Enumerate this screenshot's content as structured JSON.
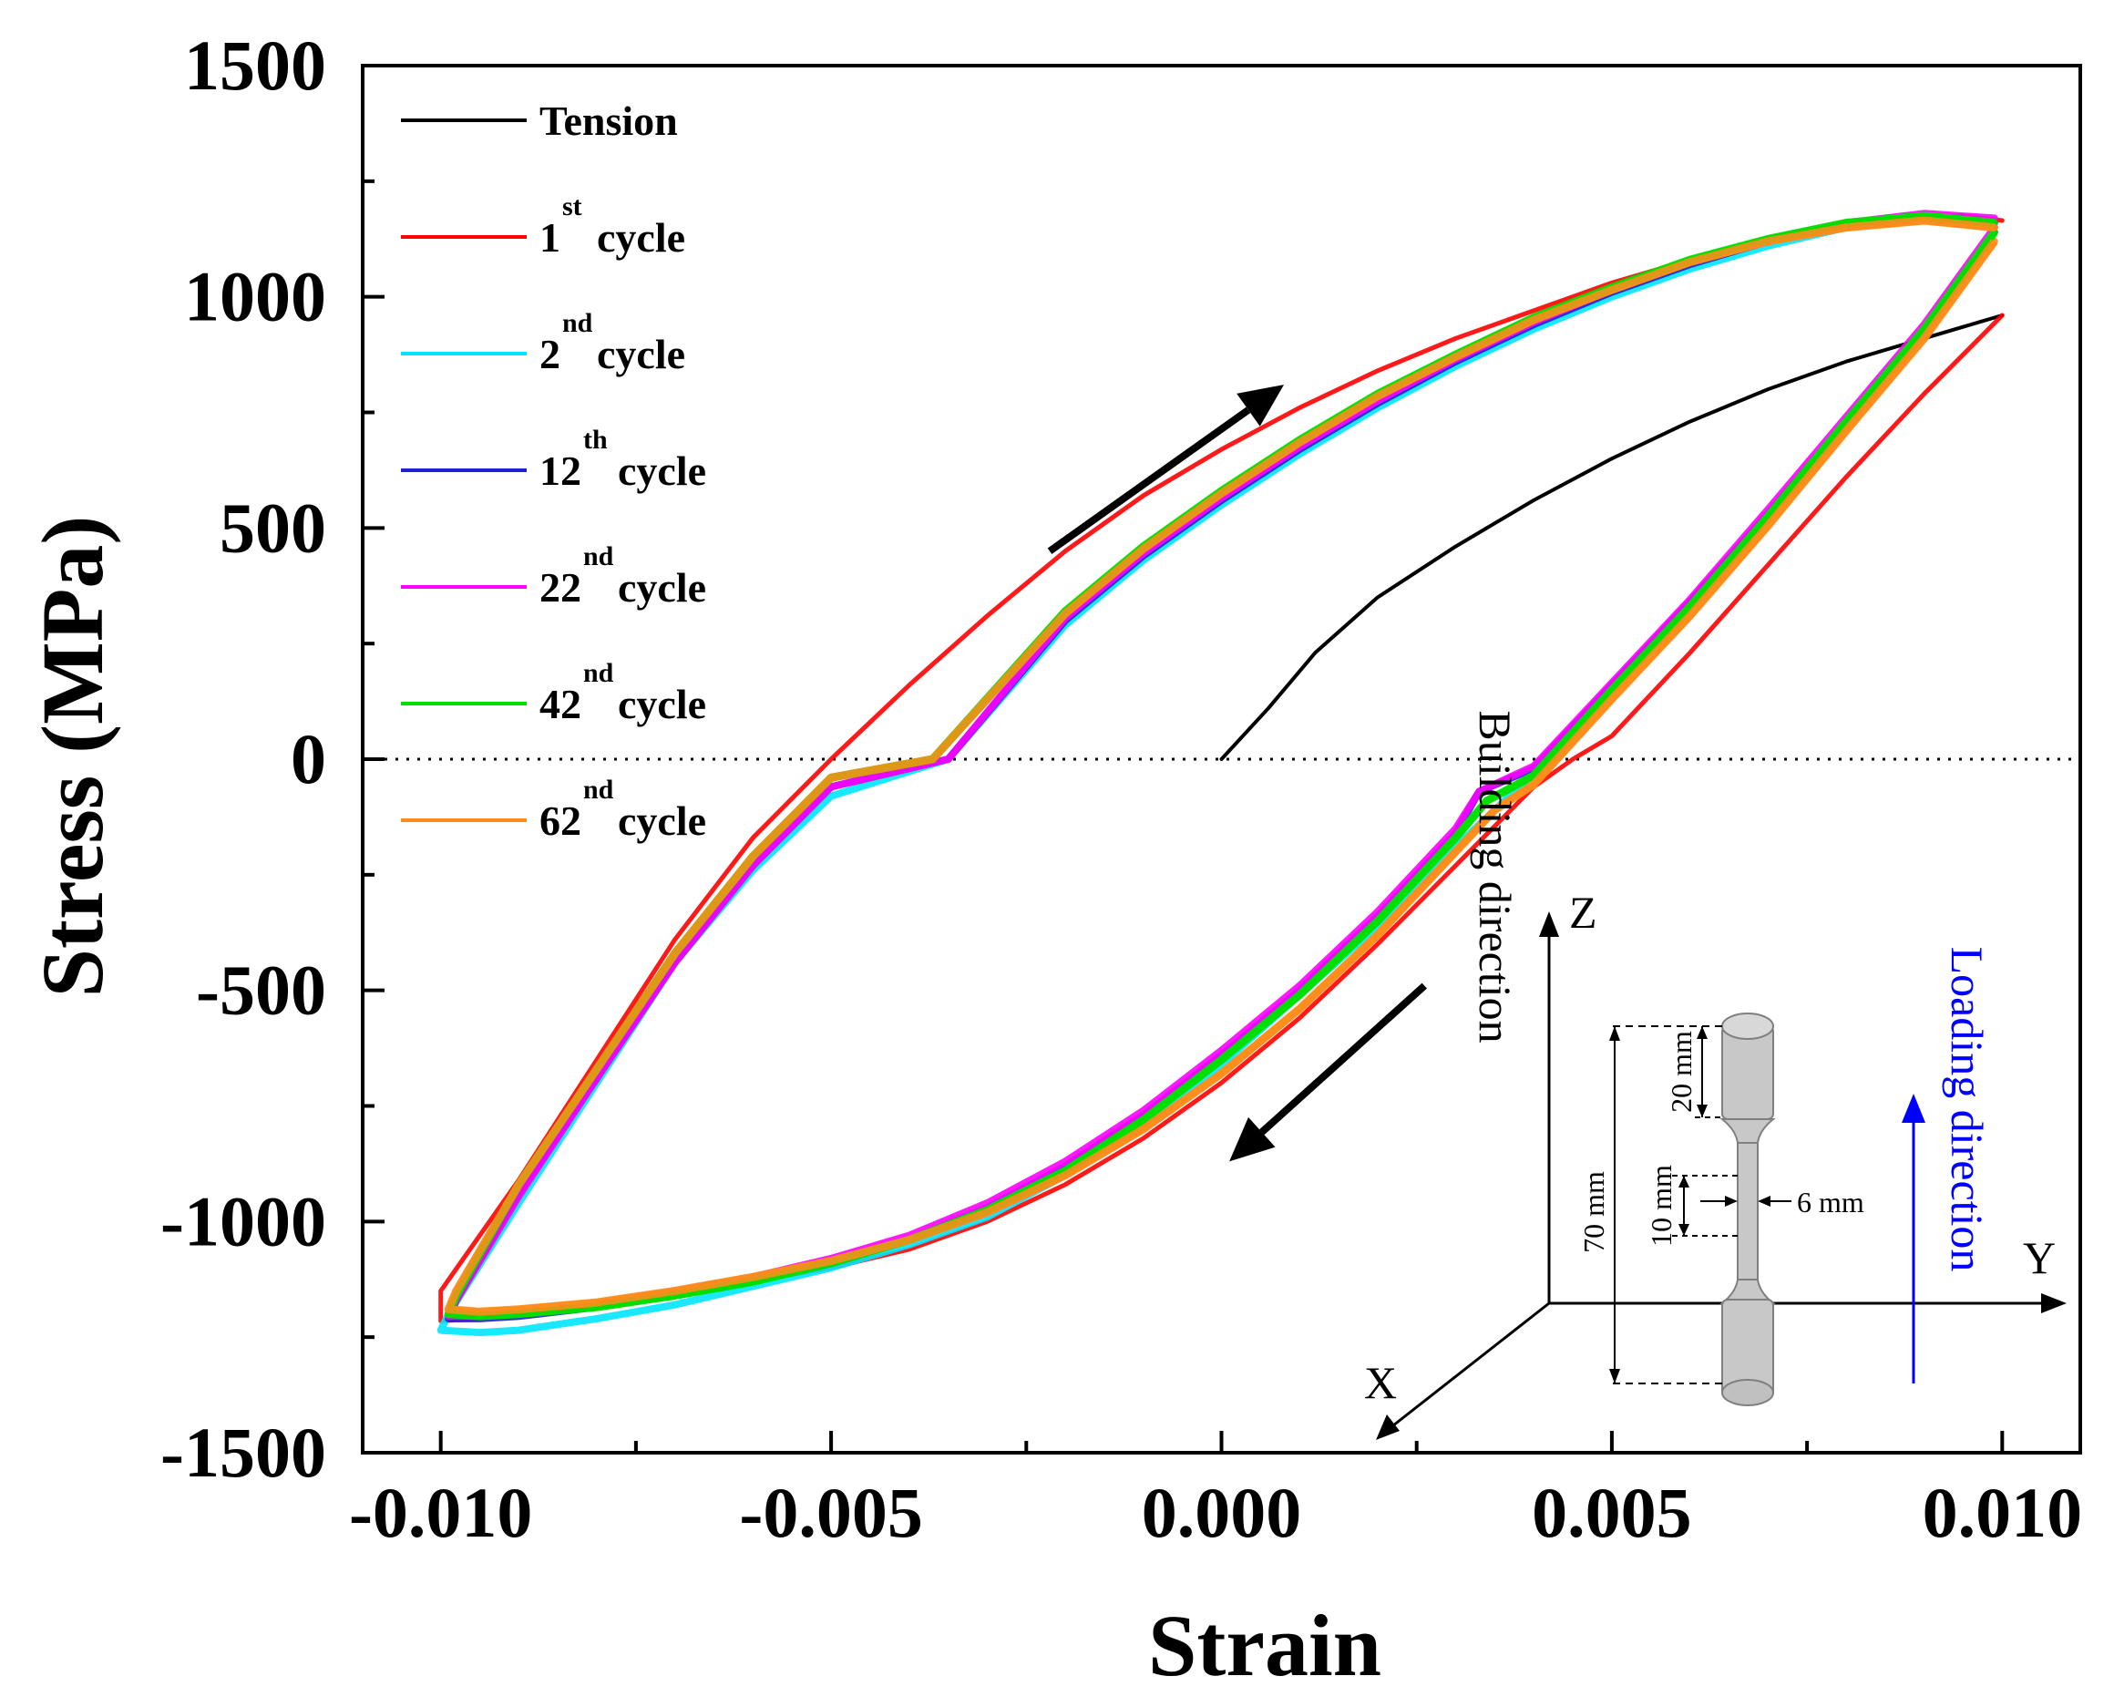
{
  "chart_data": {
    "type": "line",
    "title": "",
    "xlabel": "Strain",
    "ylabel": "Stress (MPa)",
    "xlim": [
      -0.011,
      0.011
    ],
    "ylim": [
      -1500,
      1500
    ],
    "x_ticks": [
      -0.01,
      -0.005,
      0.0,
      0.005,
      0.01
    ],
    "x_tick_labels": [
      "-0.010",
      "-0.005",
      "0.000",
      "0.005",
      "0.010"
    ],
    "y_ticks": [
      -1500,
      -1000,
      -500,
      0,
      500,
      1000,
      1500
    ],
    "y_tick_labels": [
      "-1500",
      "-1000",
      "-500",
      "0",
      "500",
      "1000",
      "1500"
    ],
    "grid": false,
    "legend_position": "top-left",
    "zero_line": true,
    "series": [
      {
        "name": "Tension",
        "color": "#000000",
        "legend_main": "Tension",
        "legend_sup": "",
        "legend_suffix": "",
        "x": [
          0.0,
          0.0006,
          0.0012,
          0.002,
          0.003,
          0.004,
          0.005,
          0.006,
          0.007,
          0.008,
          0.009,
          0.0097,
          0.01
        ],
        "y": [
          0,
          110,
          230,
          350,
          460,
          560,
          650,
          730,
          800,
          860,
          910,
          945,
          960
        ]
      },
      {
        "name": "1st cycle",
        "color": "#ff0000",
        "legend_main": "1",
        "legend_sup": "st",
        "legend_suffix": "cycle",
        "x": [
          0.01,
          0.009,
          0.008,
          0.007,
          0.006,
          0.005,
          0.0045,
          0.004,
          0.003,
          0.002,
          0.001,
          0.0,
          -0.001,
          -0.002,
          -0.003,
          -0.004,
          -0.005,
          -0.006,
          -0.007,
          -0.008,
          -0.009,
          -0.0095,
          -0.01,
          -0.01,
          -0.009,
          -0.008,
          -0.007,
          -0.006,
          -0.005,
          -0.004,
          -0.003,
          -0.002,
          -0.001,
          0.0,
          0.001,
          0.002,
          0.003,
          0.004,
          0.005,
          0.006,
          0.007,
          0.008,
          0.009,
          0.0095,
          0.01
        ],
        "y": [
          960,
          790,
          610,
          420,
          230,
          50,
          0,
          -60,
          -230,
          -400,
          -560,
          -700,
          -820,
          -920,
          -1000,
          -1060,
          -1100,
          -1130,
          -1160,
          -1185,
          -1200,
          -1210,
          -1215,
          -1150,
          -910,
          -650,
          -390,
          -170,
          0,
          160,
          310,
          450,
          570,
          670,
          760,
          840,
          910,
          970,
          1030,
          1080,
          1120,
          1150,
          1170,
          1175,
          1165
        ]
      },
      {
        "name": "2nd cycle",
        "color": "#00e5ff",
        "legend_main": "2",
        "legend_sup": "nd",
        "legend_suffix": "cycle",
        "x": [
          0.0099,
          0.009,
          0.008,
          0.007,
          0.006,
          0.005,
          0.004,
          0.0035,
          0.003,
          0.002,
          0.001,
          0.0,
          -0.001,
          -0.002,
          -0.003,
          -0.004,
          -0.005,
          -0.006,
          -0.007,
          -0.008,
          -0.009,
          -0.0095,
          -0.01,
          -0.0099,
          -0.009,
          -0.008,
          -0.007,
          -0.006,
          -0.005,
          -0.0035,
          -0.002,
          -0.001,
          0.0,
          0.001,
          0.002,
          0.003,
          0.004,
          0.005,
          0.006,
          0.007,
          0.008,
          0.009,
          0.0099
        ],
        "y": [
          1140,
          920,
          720,
          520,
          330,
          150,
          -30,
          -110,
          -190,
          -360,
          -510,
          -660,
          -790,
          -900,
          -990,
          -1050,
          -1100,
          -1140,
          -1180,
          -1210,
          -1235,
          -1240,
          -1235,
          -1200,
          -960,
          -700,
          -440,
          -240,
          -80,
          0,
          290,
          430,
          550,
          660,
          760,
          850,
          930,
          1000,
          1060,
          1110,
          1150,
          1170,
          1160
        ]
      },
      {
        "name": "12th cycle",
        "color": "#1f1fd6",
        "legend_main": "12",
        "legend_sup": "th",
        "legend_suffix": "cycle",
        "x": [
          0.0099,
          0.009,
          0.008,
          0.007,
          0.006,
          0.005,
          0.004,
          0.0033,
          0.003,
          0.002,
          0.001,
          0.0,
          -0.001,
          -0.002,
          -0.003,
          -0.004,
          -0.005,
          -0.006,
          -0.007,
          -0.008,
          -0.009,
          -0.0095,
          -0.0099,
          -0.0098,
          -0.009,
          -0.008,
          -0.007,
          -0.006,
          -0.005,
          -0.0035,
          -0.002,
          -0.001,
          0.0,
          0.001,
          0.002,
          0.003,
          0.004,
          0.005,
          0.006,
          0.007,
          0.008,
          0.009,
          0.0099
        ],
        "y": [
          1140,
          930,
          730,
          530,
          340,
          160,
          -20,
          -70,
          -160,
          -340,
          -500,
          -640,
          -770,
          -880,
          -970,
          -1040,
          -1090,
          -1130,
          -1160,
          -1185,
          -1205,
          -1210,
          -1210,
          -1170,
          -940,
          -690,
          -440,
          -230,
          -60,
          0,
          300,
          440,
          560,
          670,
          770,
          860,
          940,
          1010,
          1070,
          1120,
          1155,
          1170,
          1160
        ]
      },
      {
        "name": "22nd cycle",
        "color": "#ff00ff",
        "legend_main": "22",
        "legend_sup": "nd",
        "legend_suffix": "cycle",
        "x": [
          0.0099,
          0.009,
          0.008,
          0.007,
          0.006,
          0.005,
          0.004,
          0.0033,
          0.003,
          0.002,
          0.001,
          0.0,
          -0.001,
          -0.002,
          -0.003,
          -0.004,
          -0.005,
          -0.006,
          -0.007,
          -0.008,
          -0.009,
          -0.0095,
          -0.0099,
          -0.0098,
          -0.009,
          -0.008,
          -0.007,
          -0.006,
          -0.005,
          -0.0035,
          -0.002,
          -0.001,
          0.0,
          0.001,
          0.002,
          0.003,
          0.004,
          0.005,
          0.006,
          0.007,
          0.008,
          0.009,
          0.0099
        ],
        "y": [
          1150,
          940,
          740,
          540,
          345,
          165,
          -15,
          -70,
          -150,
          -330,
          -490,
          -630,
          -760,
          -870,
          -960,
          -1030,
          -1080,
          -1120,
          -1150,
          -1180,
          -1200,
          -1205,
          -1205,
          -1170,
          -945,
          -690,
          -440,
          -230,
          -60,
          0,
          305,
          445,
          565,
          675,
          775,
          865,
          945,
          1015,
          1075,
          1125,
          1160,
          1180,
          1170
        ]
      },
      {
        "name": "42nd cycle",
        "color": "#00e000",
        "legend_main": "42",
        "legend_sup": "nd",
        "legend_suffix": "cycle",
        "x": [
          0.0099,
          0.009,
          0.008,
          0.007,
          0.006,
          0.005,
          0.004,
          0.0034,
          0.003,
          0.002,
          0.001,
          0.0,
          -0.001,
          -0.002,
          -0.003,
          -0.004,
          -0.005,
          -0.006,
          -0.007,
          -0.008,
          -0.009,
          -0.0095,
          -0.0099,
          -0.0098,
          -0.009,
          -0.008,
          -0.007,
          -0.006,
          -0.005,
          -0.0037,
          -0.002,
          -0.001,
          0.0,
          0.001,
          0.002,
          0.003,
          0.004,
          0.005,
          0.006,
          0.007,
          0.008,
          0.009,
          0.0099
        ],
        "y": [
          1140,
          930,
          730,
          525,
          330,
          150,
          -35,
          -90,
          -170,
          -350,
          -510,
          -650,
          -780,
          -890,
          -975,
          -1040,
          -1090,
          -1130,
          -1160,
          -1185,
          -1200,
          -1205,
          -1200,
          -1160,
          -920,
          -670,
          -420,
          -210,
          -40,
          0,
          320,
          460,
          580,
          690,
          790,
          875,
          955,
          1020,
          1080,
          1125,
          1160,
          1175,
          1160
        ]
      },
      {
        "name": "62nd cycle",
        "color": "#ff8c1a",
        "legend_main": "62",
        "legend_sup": "nd",
        "legend_suffix": "cycle",
        "x": [
          0.0099,
          0.009,
          0.008,
          0.007,
          0.006,
          0.005,
          0.004,
          0.0035,
          0.003,
          0.002,
          0.001,
          0.0,
          -0.001,
          -0.002,
          -0.003,
          -0.004,
          -0.005,
          -0.006,
          -0.007,
          -0.008,
          -0.009,
          -0.0095,
          -0.0099,
          -0.0098,
          -0.009,
          -0.008,
          -0.007,
          -0.006,
          -0.005,
          -0.0037,
          -0.002,
          -0.001,
          0.0,
          0.001,
          0.002,
          0.003,
          0.004,
          0.005,
          0.006,
          0.007,
          0.008,
          0.009,
          0.0099
        ],
        "y": [
          1120,
          910,
          710,
          505,
          310,
          130,
          -55,
          -110,
          -200,
          -380,
          -540,
          -680,
          -800,
          -900,
          -980,
          -1040,
          -1085,
          -1120,
          -1150,
          -1175,
          -1190,
          -1195,
          -1190,
          -1150,
          -920,
          -670,
          -420,
          -210,
          -40,
          0,
          315,
          455,
          575,
          685,
          785,
          870,
          950,
          1015,
          1075,
          1120,
          1150,
          1165,
          1150
        ]
      }
    ],
    "annotations": {
      "arrows": [
        {
          "from": [
            -0.0022,
            450
          ],
          "to": [
            0.0008,
            810
          ],
          "color": "#000000"
        },
        {
          "from": [
            0.0026,
            -490
          ],
          "to": [
            0.0001,
            -870
          ],
          "color": "#000000"
        }
      ]
    }
  },
  "inset": {
    "axis_z": "Z",
    "axis_y": "Y",
    "axis_x": "X",
    "building_direction": "Building direction",
    "loading_direction": "Loading direction",
    "dim_70": "70 mm",
    "dim_20": "20 mm",
    "dim_10": "10 mm",
    "dim_6": "6 mm",
    "colors": {
      "loading": "#0000ff",
      "specimen_fill": "#c8c8c8",
      "specimen_stroke": "#7f7f7f"
    }
  }
}
